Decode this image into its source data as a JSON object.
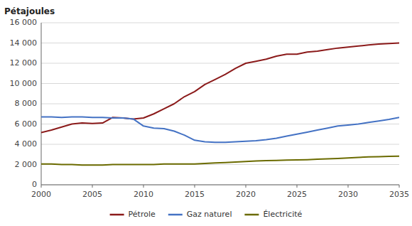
{
  "chart_data": {
    "type": "line",
    "y_label": "Pétajoules",
    "x": [
      2000,
      2001,
      2002,
      2003,
      2004,
      2005,
      2006,
      2007,
      2008,
      2009,
      2010,
      2011,
      2012,
      2013,
      2014,
      2015,
      2016,
      2017,
      2018,
      2019,
      2020,
      2021,
      2022,
      2023,
      2024,
      2025,
      2026,
      2027,
      2028,
      2029,
      2030,
      2031,
      2032,
      2033,
      2034,
      2035
    ],
    "series": [
      {
        "name": "Pétrole",
        "color": "#8B1A1A",
        "values": [
          5150,
          5400,
          5700,
          6000,
          6100,
          6050,
          6100,
          6650,
          6600,
          6500,
          6600,
          7000,
          7500,
          8000,
          8700,
          9200,
          9900,
          10400,
          10900,
          11500,
          12000,
          12200,
          12400,
          12700,
          12900,
          12900,
          13100,
          13200,
          13350,
          13500,
          13600,
          13700,
          13800,
          13900,
          13950,
          14000
        ]
      },
      {
        "name": "Gaz naturel",
        "color": "#4472C4",
        "values": [
          6700,
          6700,
          6650,
          6700,
          6700,
          6650,
          6650,
          6600,
          6600,
          6500,
          5800,
          5600,
          5550,
          5300,
          4900,
          4400,
          4250,
          4200,
          4200,
          4250,
          4300,
          4350,
          4450,
          4600,
          4800,
          5000,
          5200,
          5400,
          5600,
          5800,
          5900,
          6000,
          6150,
          6300,
          6450,
          6650
        ]
      },
      {
        "name": "Électricité",
        "color": "#6B6B00",
        "values": [
          2050,
          2050,
          2000,
          2000,
          1950,
          1950,
          1950,
          2000,
          2000,
          2000,
          2000,
          2000,
          2050,
          2050,
          2050,
          2050,
          2100,
          2150,
          2200,
          2250,
          2300,
          2350,
          2380,
          2400,
          2430,
          2450,
          2480,
          2520,
          2560,
          2600,
          2650,
          2700,
          2750,
          2780,
          2800,
          2820
        ]
      }
    ],
    "xlim": [
      2000,
      2035
    ],
    "xticks": [
      2000,
      2005,
      2010,
      2015,
      2020,
      2025,
      2030,
      2035
    ],
    "ylim": [
      0,
      16000
    ],
    "yticks": [
      0,
      {
        "value": 2000,
        "label": "2 000"
      },
      {
        "value": 4000,
        "label": "4 000"
      },
      {
        "value": 6000,
        "label": "6 000"
      },
      {
        "value": 8000,
        "label": "8 000"
      },
      {
        "value": 10000,
        "label": "10 000"
      },
      {
        "value": 12000,
        "label": "12 000"
      },
      {
        "value": 14000,
        "label": "14 000"
      },
      {
        "value": 16000,
        "label": "16 000"
      }
    ],
    "grid": true,
    "legend": "bottom"
  }
}
